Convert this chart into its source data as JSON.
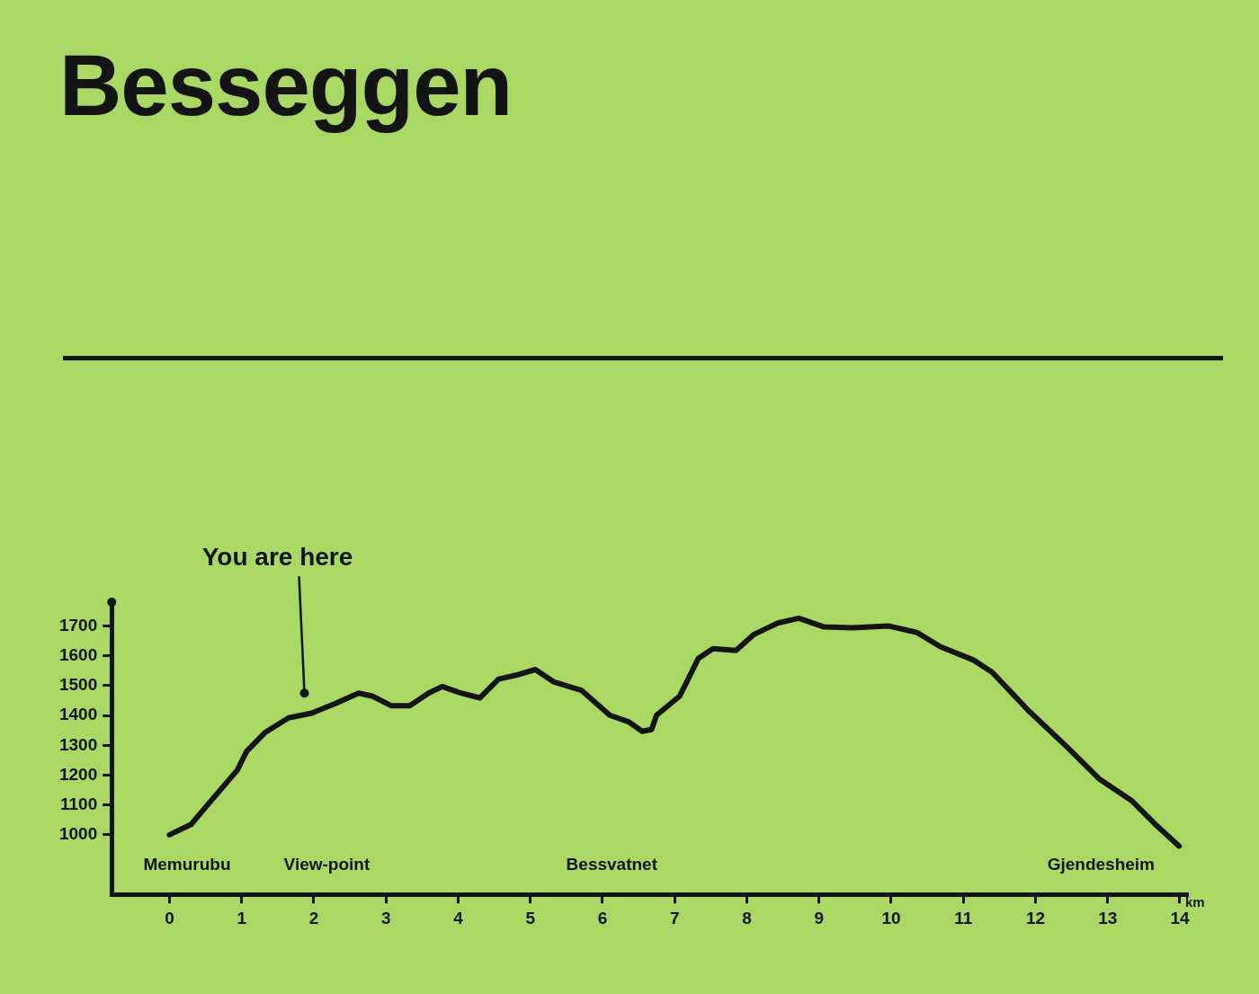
{
  "chart_data": {
    "type": "line",
    "title": "Besseggen",
    "xlabel": "km",
    "color": "#141414",
    "x": [
      0,
      0.3,
      0.58,
      0.94,
      1.07,
      1.33,
      1.65,
      1.97,
      2.3,
      2.62,
      2.81,
      3.07,
      3.33,
      3.59,
      3.78,
      4.04,
      4.3,
      4.56,
      4.8,
      5.07,
      5.32,
      5.71,
      6.1,
      6.36,
      6.55,
      6.68,
      6.75,
      7.07,
      7.33,
      7.53,
      7.85,
      8.1,
      8.43,
      8.72,
      9.07,
      9.46,
      9.97,
      10.36,
      10.68,
      11.14,
      11.4,
      11.9,
      12.43,
      12.88,
      13.33,
      13.66,
      13.99
    ],
    "values": [
      1000,
      1035,
      1115,
      1217,
      1280,
      1344,
      1392,
      1408,
      1440,
      1475,
      1465,
      1433,
      1433,
      1475,
      1497,
      1475,
      1459,
      1522,
      1535,
      1554,
      1513,
      1484,
      1401,
      1379,
      1347,
      1353,
      1401,
      1465,
      1592,
      1624,
      1618,
      1672,
      1710,
      1726,
      1697,
      1694,
      1700,
      1678,
      1631,
      1586,
      1545,
      1417,
      1296,
      1188,
      1115,
      1035,
      962
    ],
    "xlim": [
      -0.8,
      14.1
    ],
    "xticks": [
      0,
      1,
      2,
      3,
      4,
      5,
      6,
      7,
      8,
      9,
      10,
      11,
      12,
      13,
      14
    ],
    "ylim": [
      800,
      1780
    ],
    "yticks": [
      1000,
      1100,
      1200,
      1300,
      1400,
      1500,
      1600,
      1700
    ],
    "annotations": [
      {
        "text": "You are here",
        "x": 1.87,
        "y": 1475
      },
      "Memurubu",
      "View-point",
      "Bessvatnet",
      "Gjendesheim"
    ],
    "grid": false,
    "legend": false,
    "marker": "none",
    "line_style": "solid"
  }
}
